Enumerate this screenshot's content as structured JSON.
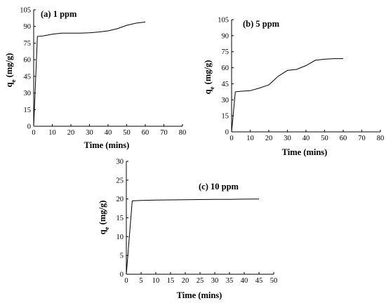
{
  "chart_data": [
    {
      "type": "line",
      "title": "(a) 1 ppm",
      "xlabel": "Time (mins)",
      "ylabel_main": "q",
      "ylabel_sub": "e",
      "ylabel_unit": " (mg/g)",
      "xlim": [
        0,
        80
      ],
      "ylim": [
        0,
        105
      ],
      "xticks": [
        0,
        10,
        20,
        30,
        40,
        50,
        60,
        70,
        80
      ],
      "yticks": [
        0,
        15,
        30,
        45,
        60,
        75,
        90,
        105
      ],
      "x": [
        0,
        2,
        5,
        10,
        15,
        20,
        25,
        30,
        35,
        40,
        45,
        50,
        55,
        60
      ],
      "y": [
        0,
        81,
        81.5,
        83,
        84,
        84,
        84,
        84.3,
        85,
        86,
        88,
        91,
        93,
        94
      ],
      "color": "#000000"
    },
    {
      "type": "line",
      "title": "(b) 5 ppm",
      "xlabel": "Time (mins)",
      "ylabel_main": "q",
      "ylabel_sub": "e",
      "ylabel_unit": " (mg/g)",
      "xlim": [
        0,
        80
      ],
      "ylim": [
        0,
        105
      ],
      "xticks": [
        0,
        10,
        20,
        30,
        40,
        50,
        60,
        70,
        80
      ],
      "yticks": [
        0,
        15,
        30,
        45,
        60,
        75,
        90,
        105
      ],
      "x": [
        0,
        2,
        5,
        10,
        15,
        20,
        25,
        30,
        35,
        40,
        45,
        50,
        55,
        60
      ],
      "y": [
        0,
        37.5,
        38,
        38.5,
        41,
        44,
        52,
        57.5,
        58.5,
        62,
        67,
        68,
        68.5,
        68.5
      ],
      "color": "#000000"
    },
    {
      "type": "line",
      "title": "(c) 10 ppm",
      "xlabel": "Time (mins)",
      "ylabel_main": "q",
      "ylabel_sub": "e",
      "ylabel_unit": " (mg/g)",
      "xlim": [
        0,
        50
      ],
      "ylim": [
        0,
        30
      ],
      "xticks": [
        0,
        5,
        10,
        15,
        20,
        25,
        30,
        35,
        40,
        45,
        50
      ],
      "yticks": [
        0,
        5,
        10,
        15,
        20,
        25,
        30
      ],
      "x": [
        0,
        2,
        5,
        10,
        15,
        20,
        25,
        30,
        35,
        40,
        45
      ],
      "y": [
        0,
        19.5,
        19.6,
        19.7,
        19.75,
        19.8,
        19.85,
        19.9,
        19.9,
        19.95,
        20
      ],
      "color": "#000000"
    }
  ]
}
